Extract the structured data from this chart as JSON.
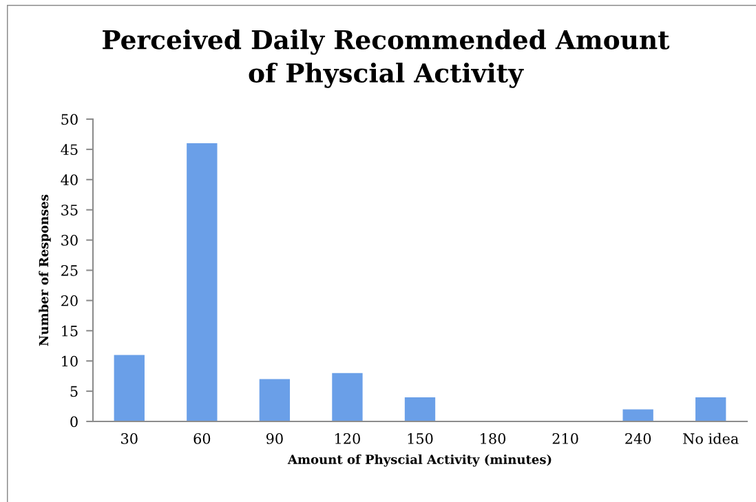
{
  "chart_data": {
    "type": "bar",
    "title": "Perceived Daily Recommended Amount\nof Physcial Activity",
    "xlabel": "Amount of Physcial Activity (minutes)",
    "ylabel": "Number of Responses",
    "categories": [
      "30",
      "60",
      "90",
      "120",
      "150",
      "180",
      "210",
      "240",
      "No idea"
    ],
    "values": [
      11,
      46,
      7,
      8,
      4,
      0,
      0,
      2,
      4
    ],
    "color": "#6a9fe8",
    "ylim": [
      0,
      50
    ],
    "yticks": [
      0,
      5,
      10,
      15,
      20,
      25,
      30,
      35,
      40,
      45,
      50
    ],
    "grid": false,
    "legend": false
  }
}
